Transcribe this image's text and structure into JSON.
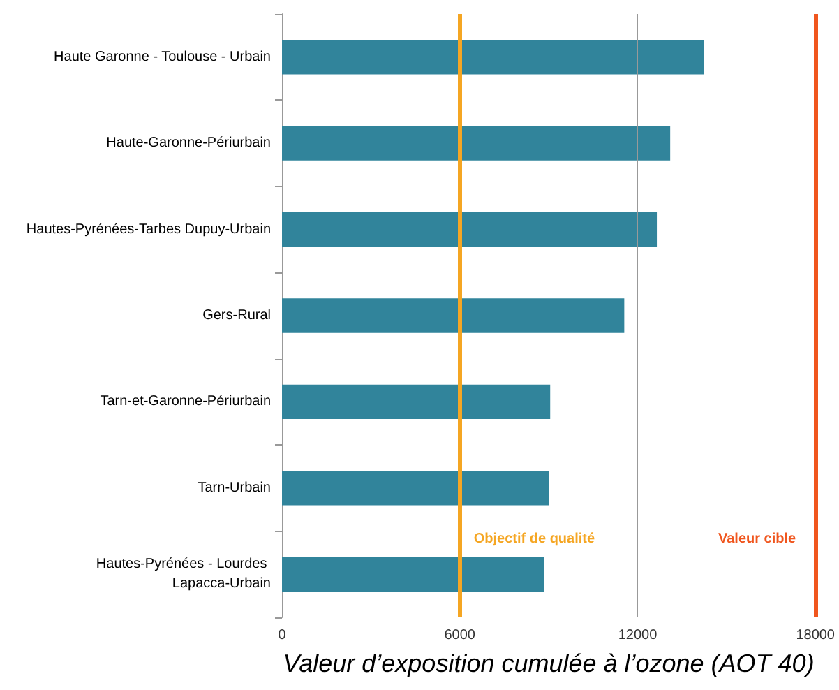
{
  "chart_data": {
    "type": "bar",
    "orientation": "horizontal",
    "xlabel": "Valeur d’exposition cumulée à l’ozone (AOT 40)",
    "categories": [
      "Haute Garonne - Toulouse - Urbain",
      "Haute-Garonne-Périurbain",
      "Hautes-Pyrénées-Tarbes Dupuy-Urbain",
      "Gers-Rural",
      "Tarn-et-Garonne-Périurbain",
      "Tarn-Urbain",
      "Hautes-Pyrénées - Lourdes Lapacca-Urbain"
    ],
    "values": [
      14250,
      13100,
      12650,
      11550,
      9050,
      9000,
      8850
    ],
    "color": "#31849b",
    "xlim": [
      0,
      18000
    ],
    "xticks": [
      0,
      6000,
      12000,
      18000
    ],
    "ref_lines": [
      {
        "axis": "x",
        "value": 12000,
        "color": "#999999"
      },
      {
        "axis": "x",
        "value": 6000,
        "label": "Objectif de qualité",
        "color": "#f5a623"
      },
      {
        "axis": "x",
        "value": 18000,
        "label": "Valeur cible",
        "color": "#f0561e"
      }
    ]
  }
}
